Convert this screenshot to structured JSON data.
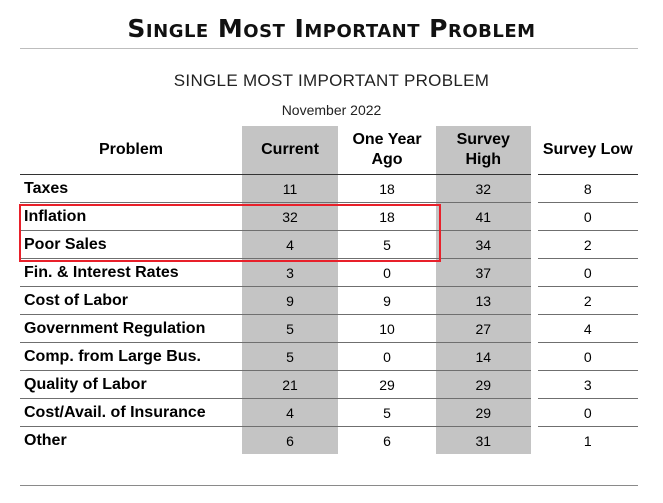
{
  "heading": "Single Most Important Problem",
  "title": "SINGLE MOST IMPORTANT PROBLEM",
  "subtitle": "November 2022",
  "columns": [
    "Problem",
    "Current",
    "One Year Ago",
    "Survey High",
    "Survey Low"
  ],
  "rows": [
    {
      "problem": "Taxes",
      "current": "11",
      "one_year_ago": "18",
      "survey_high": "32",
      "survey_low": "8"
    },
    {
      "problem": "Inflation",
      "current": "32",
      "one_year_ago": "18",
      "survey_high": "41",
      "survey_low": "0"
    },
    {
      "problem": "Poor Sales",
      "current": "4",
      "one_year_ago": "5",
      "survey_high": "34",
      "survey_low": "2"
    },
    {
      "problem": "Fin. & Interest Rates",
      "current": "3",
      "one_year_ago": "0",
      "survey_high": "37",
      "survey_low": "0"
    },
    {
      "problem": "Cost of Labor",
      "current": "9",
      "one_year_ago": "9",
      "survey_high": "13",
      "survey_low": "2"
    },
    {
      "problem": "Government Regulation",
      "current": "5",
      "one_year_ago": "10",
      "survey_high": "27",
      "survey_low": "4"
    },
    {
      "problem": "Comp. from Large Bus.",
      "current": "5",
      "one_year_ago": "0",
      "survey_high": "14",
      "survey_low": "0"
    },
    {
      "problem": "Quality of Labor",
      "current": "21",
      "one_year_ago": "29",
      "survey_high": "29",
      "survey_low": "3"
    },
    {
      "problem": "Cost/Avail. of Insurance",
      "current": "4",
      "one_year_ago": "5",
      "survey_high": "29",
      "survey_low": "0"
    },
    {
      "problem": "Other",
      "current": "6",
      "one_year_ago": "6",
      "survey_high": "31",
      "survey_low": "1"
    }
  ],
  "highlighted_rows": [
    "Inflation",
    "Poor Sales"
  ],
  "colors": {
    "shaded_column": "#c4c4c4",
    "highlight_box": "#e8202a"
  }
}
